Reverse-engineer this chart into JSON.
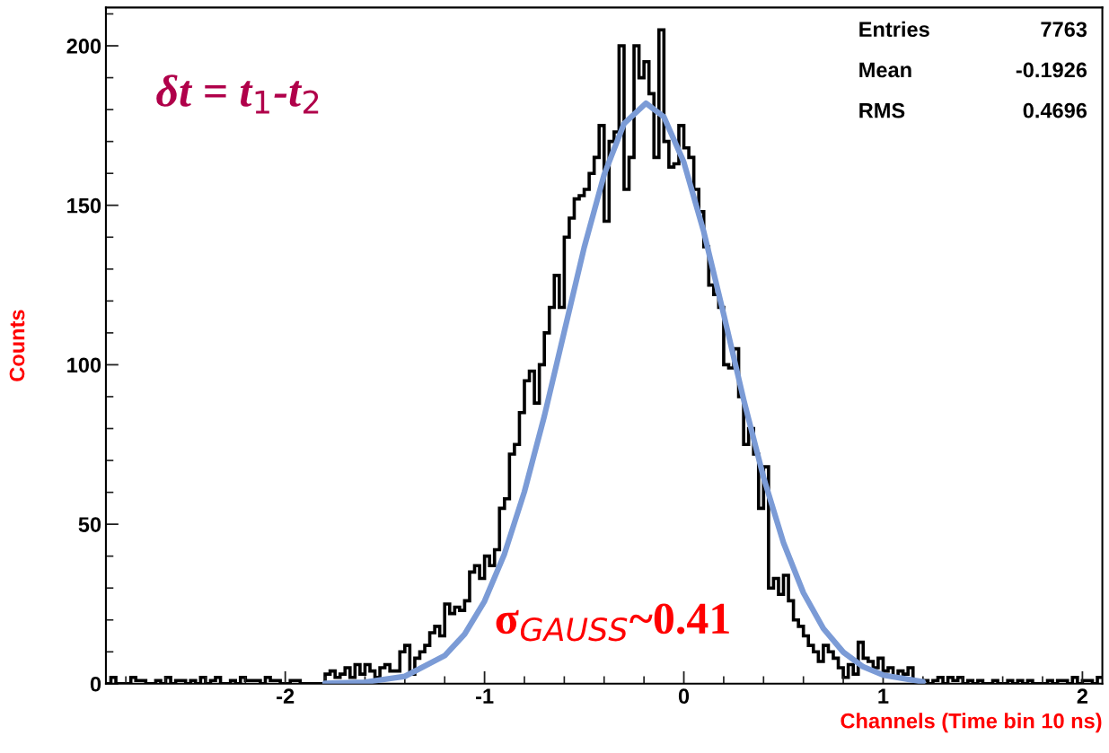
{
  "chart_data": {
    "type": "histogram",
    "xlabel": "Channels (Time bin 10 ns)",
    "ylabel": "Counts",
    "bins": [
      -2.9,
      -2.875,
      -2.85,
      -2.825,
      -2.8,
      -2.775,
      -2.75,
      -2.725,
      -2.7,
      -2.675,
      -2.65,
      -2.625,
      -2.6,
      -2.575,
      -2.55,
      -2.525,
      -2.5,
      -2.475,
      -2.45,
      -2.425,
      -2.4,
      -2.375,
      -2.35,
      -2.325,
      -2.3,
      -2.275,
      -2.25,
      -2.225,
      -2.2,
      -2.175,
      -2.15,
      -2.125,
      -2.1,
      -2.075,
      -2.05,
      -2.025,
      -2.0,
      -1.975,
      -1.95,
      -1.925,
      -1.9,
      -1.875,
      -1.85,
      -1.825,
      -1.8,
      -1.775,
      -1.75,
      -1.725,
      -1.7,
      -1.675,
      -1.65,
      -1.625,
      -1.6,
      -1.575,
      -1.55,
      -1.525,
      -1.5,
      -1.475,
      -1.45,
      -1.425,
      -1.4,
      -1.375,
      -1.35,
      -1.325,
      -1.3,
      -1.275,
      -1.25,
      -1.225,
      -1.2,
      -1.175,
      -1.15,
      -1.125,
      -1.1,
      -1.075,
      -1.05,
      -1.025,
      -1.0,
      -0.975,
      -0.95,
      -0.925,
      -0.9,
      -0.875,
      -0.85,
      -0.825,
      -0.8,
      -0.775,
      -0.75,
      -0.725,
      -0.7,
      -0.675,
      -0.65,
      -0.625,
      -0.6,
      -0.575,
      -0.55,
      -0.525,
      -0.5,
      -0.475,
      -0.45,
      -0.425,
      -0.4,
      -0.375,
      -0.35,
      -0.325,
      -0.3,
      -0.275,
      -0.25,
      -0.225,
      -0.2,
      -0.175,
      -0.15,
      -0.125,
      -0.1,
      -0.075,
      -0.05,
      -0.025,
      0.0,
      0.025,
      0.05,
      0.075,
      0.1,
      0.125,
      0.15,
      0.175,
      0.2,
      0.225,
      0.25,
      0.275,
      0.3,
      0.325,
      0.35,
      0.375,
      0.4,
      0.425,
      0.45,
      0.475,
      0.5,
      0.525,
      0.55,
      0.575,
      0.6,
      0.625,
      0.65,
      0.675,
      0.7,
      0.725,
      0.75,
      0.775,
      0.8,
      0.825,
      0.85,
      0.875,
      0.9,
      0.925,
      0.95,
      0.975,
      1.0,
      1.025,
      1.05,
      1.075,
      1.1,
      1.125,
      1.15,
      1.175,
      1.2,
      1.225,
      1.25,
      1.275,
      1.3,
      1.325,
      1.35,
      1.375,
      1.4,
      1.425,
      1.45,
      1.475,
      1.5,
      1.525,
      1.55,
      1.575,
      1.6,
      1.625,
      1.65,
      1.675,
      1.7,
      1.725,
      1.75,
      1.775,
      1.8,
      1.825,
      1.85,
      1.875,
      1.9,
      1.925,
      1.95,
      1.975,
      2.0,
      2.025,
      2.05,
      2.075,
      2.1
    ],
    "values": [
      0,
      2,
      0,
      0,
      0,
      2,
      1,
      1,
      0,
      0,
      1,
      0,
      2,
      0,
      1,
      1,
      0,
      1,
      0,
      2,
      0,
      1,
      2,
      0,
      0,
      1,
      0,
      2,
      1,
      1,
      1,
      0,
      2,
      1,
      1,
      0,
      0,
      1,
      1,
      0,
      0,
      0,
      0,
      0,
      3,
      4,
      2,
      3,
      5,
      2,
      6,
      3,
      6,
      4,
      2,
      5,
      6,
      4,
      4,
      10,
      12,
      3,
      8,
      10,
      12,
      16,
      18,
      15,
      25,
      22,
      24,
      23,
      26,
      35,
      37,
      33,
      40,
      37,
      42,
      55,
      58,
      72,
      75,
      85,
      95,
      98,
      88,
      100,
      110,
      118,
      128,
      118,
      140,
      146,
      152,
      153,
      155,
      160,
      165,
      175,
      145,
      170,
      173,
      200,
      155,
      165,
      200,
      190,
      195,
      185,
      165,
      205,
      170,
      162,
      163,
      175,
      168,
      165,
      155,
      148,
      137,
      125,
      122,
      118,
      100,
      99,
      105,
      90,
      75,
      80,
      72,
      55,
      68,
      30,
      33,
      28,
      34,
      26,
      20,
      18,
      15,
      12,
      10,
      7,
      12,
      10,
      8,
      5,
      2,
      6,
      3,
      13,
      8,
      7,
      5,
      8,
      4,
      5,
      2,
      4,
      3,
      5,
      1,
      0,
      1,
      0,
      1,
      2,
      0,
      2,
      1,
      2,
      0,
      1,
      0,
      1,
      0,
      0,
      1,
      0,
      0,
      1,
      0,
      1,
      0,
      1,
      0,
      0,
      0,
      1,
      0,
      1,
      1,
      0,
      2,
      0,
      1,
      1,
      0,
      2
    ],
    "color": "#000000",
    "series": [
      {
        "type": "line",
        "color": "#7b9bd6",
        "x": [
          -1.8,
          -1.6,
          -1.4,
          -1.2,
          -1.1,
          -1.0,
          -0.9,
          -0.8,
          -0.7,
          -0.6,
          -0.5,
          -0.4,
          -0.3,
          -0.19,
          -0.1,
          0.0,
          0.1,
          0.2,
          0.3,
          0.4,
          0.5,
          0.6,
          0.7,
          0.8,
          0.9,
          1.0,
          1.2
        ],
        "values": [
          0.1,
          0.5,
          2.3,
          8.8,
          15.5,
          25.9,
          40.7,
          60.2,
          83.9,
          110.4,
          136.8,
          159.6,
          175.6,
          182,
          177.7,
          163.5,
          141.7,
          115.8,
          89.1,
          64.7,
          44.2,
          28.5,
          17.3,
          9.9,
          5.3,
          2.7,
          0.6
        ]
      }
    ],
    "xlim": [
      -2.9,
      2.1
    ],
    "xticks": [
      -2,
      -1,
      0,
      1,
      2
    ],
    "ylim": [
      0,
      212
    ],
    "yticks": [
      0,
      50,
      100,
      150,
      200
    ],
    "grid": false,
    "legend": false,
    "annotations": [
      "Entries 7763",
      "Mean -0.1926",
      "RMS 0.4696",
      "δt = t$_{1}$-t$_{2}$",
      "σ$_{GAUSS}$~0.41"
    ]
  }
}
